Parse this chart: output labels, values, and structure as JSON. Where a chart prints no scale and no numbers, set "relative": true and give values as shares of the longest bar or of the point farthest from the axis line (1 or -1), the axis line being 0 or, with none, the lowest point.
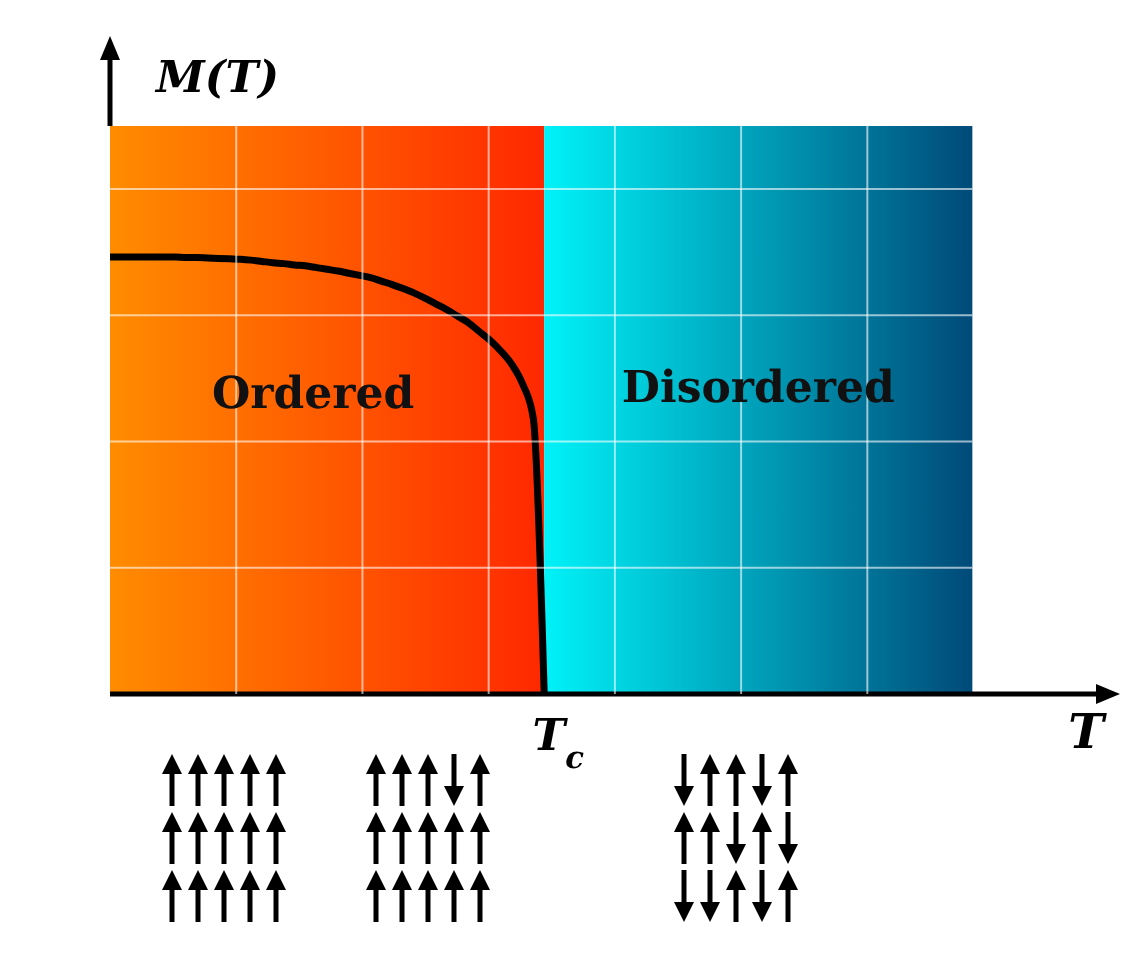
{
  "chart_data": {
    "type": "line",
    "relative": true,
    "ylabel": "M(T)",
    "categories": [
      null,
      null,
      null,
      null,
      null,
      null,
      null,
      null,
      null,
      null,
      null,
      null,
      null,
      null,
      null,
      null,
      null,
      null,
      null,
      null,
      null,
      null,
      null,
      null,
      null,
      null,
      null,
      null,
      null,
      null,
      null,
      null,
      null,
      null,
      null,
      null,
      null,
      null,
      null,
      null,
      null
    ],
    "series": [
      {
        "color": "#000000",
        "values": [
          1,
          1,
          1,
          1,
          1,
          1,
          1,
          0.999,
          0.999,
          0.998,
          0.997,
          0.996,
          0.995,
          0.993,
          0.99,
          0.987,
          0.985,
          0.982,
          0.98,
          0.976,
          0.972,
          0.968,
          0.963,
          0.958,
          0.953,
          0.945,
          0.937,
          0.928,
          0.918,
          0.906,
          0.893,
          0.88,
          0.865,
          0.85,
          0.83,
          0.81,
          0.785,
          0.755,
          0.71,
          0.63,
          0
        ]
      }
    ],
    "annotations": [
      "T$_{c}$",
      "Ordered",
      "Disordered",
      "T"
    ],
    "grid": true,
    "marker": "none",
    "line_style": "solid"
  }
}
